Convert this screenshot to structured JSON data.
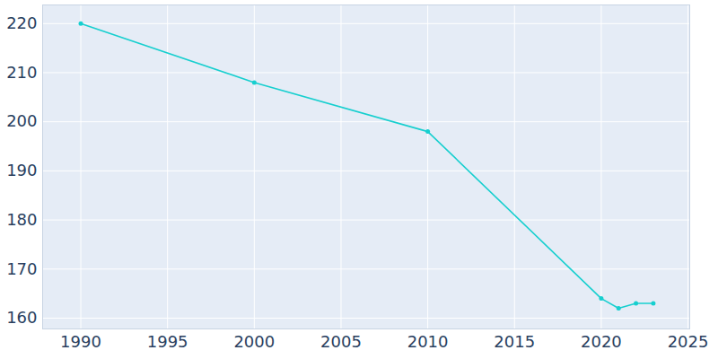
{
  "chart_data": {
    "type": "line",
    "x": [
      1990,
      2000,
      2010,
      2020,
      2021,
      2022,
      2023
    ],
    "values": [
      220,
      208,
      198,
      164,
      162,
      163,
      163
    ],
    "color": "#17cfcf",
    "marker": "circle",
    "xlim": [
      1987.8,
      2025.1
    ],
    "xticks": [
      1990,
      1995,
      2000,
      2005,
      2010,
      2015,
      2020,
      2025
    ],
    "ylim": [
      157.8,
      223.8
    ],
    "yticks": [
      160,
      170,
      180,
      190,
      200,
      210,
      220
    ],
    "grid": true
  }
}
